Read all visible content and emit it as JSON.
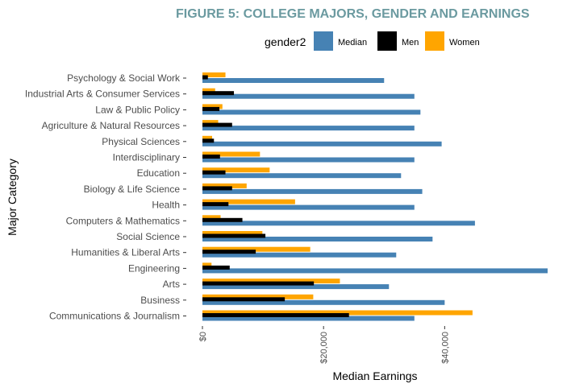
{
  "chart_data": {
    "type": "bar",
    "orientation": "horizontal",
    "title": "FIGURE 5: COLLEGE MAJORS, GENDER AND EARNINGS",
    "xlabel": "Median Earnings",
    "ylabel": "Major Category",
    "legend": {
      "title": "gender2",
      "placement": "top",
      "entries": [
        {
          "name": "Median",
          "color": "#4682b4"
        },
        {
          "name": "Men",
          "color": "#000000"
        },
        {
          "name": "Women",
          "color": "#ffa500"
        }
      ]
    },
    "xlim": [
      0,
      57000
    ],
    "x_ticks": [
      0,
      20000,
      40000
    ],
    "x_tick_labels": [
      "$0",
      "$20,000",
      "$40,000"
    ],
    "categories": [
      "Psychology & Social Work",
      "Industrial Arts & Consumer Services",
      "Law & Public Policy",
      "Agriculture & Natural Resources",
      "Physical Sciences",
      "Interdisciplinary",
      "Education",
      "Biology & Life Science",
      "Health",
      "Computers & Mathematics",
      "Social Science",
      "Humanities & Liberal Arts",
      "Engineering",
      "Arts",
      "Business",
      "Communications & Journalism"
    ],
    "series": [
      {
        "name": "Median",
        "color": "#4682b4",
        "values": [
          30000,
          35000,
          36000,
          35000,
          39500,
          35000,
          32800,
          36300,
          35000,
          45000,
          38000,
          32000,
          57000,
          30800,
          40000,
          35000
        ]
      },
      {
        "name": "Men",
        "color": "#000000",
        "values": [
          900,
          5200,
          2800,
          4900,
          1900,
          2900,
          3800,
          4900,
          4300,
          6600,
          10400,
          8800,
          4500,
          18400,
          13600,
          24200
        ]
      },
      {
        "name": "Women",
        "color": "#ffa500",
        "values": [
          3800,
          2100,
          3300,
          2600,
          1600,
          9500,
          11100,
          7300,
          15300,
          3000,
          9900,
          17800,
          1500,
          22700,
          18300,
          44600
        ]
      }
    ],
    "grid": false
  }
}
